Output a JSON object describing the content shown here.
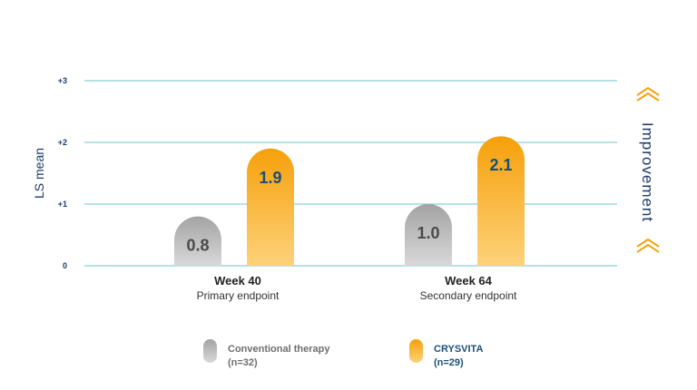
{
  "chart_data": {
    "type": "bar",
    "title": "",
    "ylabel": "LS mean",
    "ylim": [
      0,
      3
    ],
    "yticks": [
      "0",
      "+1",
      "+2",
      "+3"
    ],
    "grid": true,
    "categories": [
      {
        "label": "Week 40",
        "sublabel": "Primary endpoint"
      },
      {
        "label": "Week 64",
        "sublabel": "Secondary endpoint"
      }
    ],
    "series": [
      {
        "name": "Conventional therapy",
        "n_label": "(n=32)",
        "values": [
          0.8,
          1.0
        ],
        "value_labels": [
          "0.8",
          "1.0"
        ],
        "color": "#a9a9a9"
      },
      {
        "name": "CRYSVITA",
        "n_label": "(n=29)",
        "values": [
          1.9,
          2.1
        ],
        "value_labels": [
          "1.9",
          "2.1"
        ],
        "color": "#f7a30f"
      }
    ],
    "annotation": "Improvement",
    "colors": {
      "gridline": "#6cc5cc",
      "axis_text": "#1a3a6b",
      "chevron": "#f7a30f"
    }
  }
}
